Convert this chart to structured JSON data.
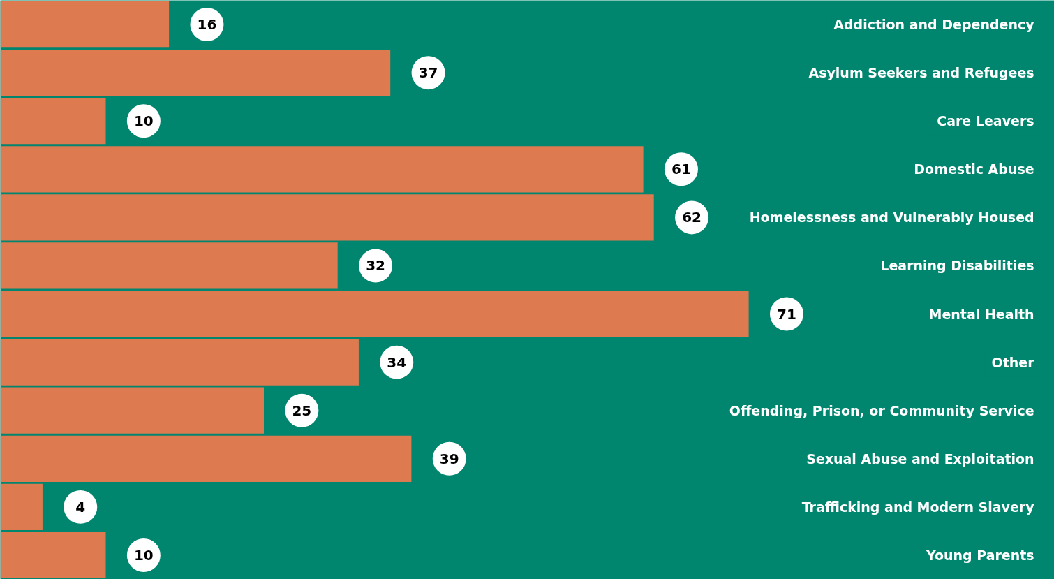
{
  "chart_data": {
    "type": "bar",
    "orientation": "horizontal",
    "categories": [
      "Addiction and Dependency",
      "Asylum Seekers and Refugees",
      "Care Leavers",
      "Domestic Abuse",
      "Homelessness and Vulnerably Housed",
      "Learning Disabilities",
      "Mental Health",
      "Other",
      "Offending, Prison, or Community Service",
      "Sexual Abuse and Exploitation",
      "Trafficking and Modern Slavery",
      "Young Parents"
    ],
    "values": [
      16,
      37,
      10,
      61,
      62,
      32,
      71,
      34,
      25,
      39,
      4,
      10
    ],
    "color": "#dd7a50",
    "xlim": [
      0,
      100
    ],
    "data_labels": true,
    "tick_labels": false,
    "grid": false
  }
}
